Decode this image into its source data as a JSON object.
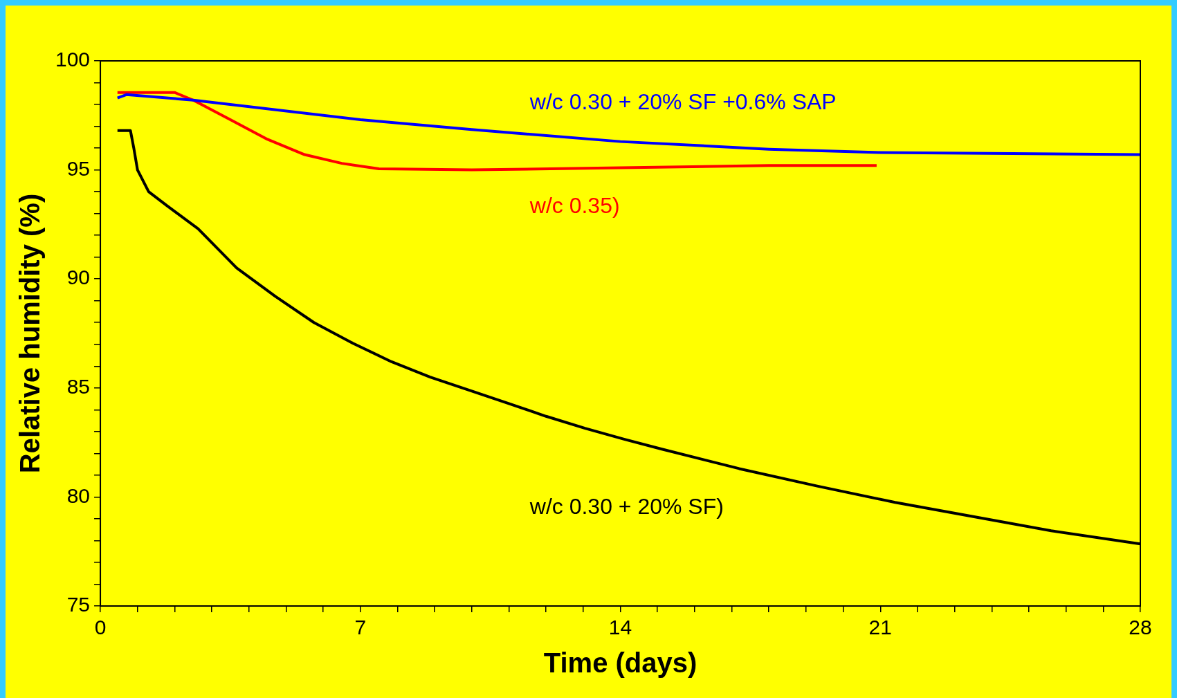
{
  "chart_data": {
    "type": "line",
    "xlabel": "Time (days)",
    "ylabel": "Relative humidity (%)",
    "xlim": [
      0,
      28
    ],
    "ylim": [
      75,
      100
    ],
    "xticks": [
      0,
      {
        "value": 1,
        "label": null
      },
      {
        "value": 2,
        "label": null
      },
      {
        "value": 3,
        "label": null
      },
      {
        "value": 4,
        "label": null
      },
      {
        "value": 5,
        "label": null
      },
      {
        "value": 6,
        "label": null
      },
      7,
      {
        "value": 8,
        "label": null
      },
      {
        "value": 9,
        "label": null
      },
      {
        "value": 10,
        "label": null
      },
      {
        "value": 11,
        "label": null
      },
      {
        "value": 12,
        "label": null
      },
      {
        "value": 13,
        "label": null
      },
      14,
      {
        "value": 15,
        "label": null
      },
      {
        "value": 16,
        "label": null
      },
      {
        "value": 17,
        "label": null
      },
      {
        "value": 18,
        "label": null
      },
      {
        "value": 19,
        "label": null
      },
      {
        "value": 20,
        "label": null
      },
      21,
      {
        "value": 22,
        "label": null
      },
      {
        "value": 23,
        "label": null
      },
      {
        "value": 24,
        "label": null
      },
      {
        "value": 25,
        "label": null
      },
      {
        "value": 26,
        "label": null
      },
      {
        "value": 27,
        "label": null
      },
      28
    ],
    "yticks": [
      75,
      {
        "value": 76,
        "label": null
      },
      {
        "value": 77,
        "label": null
      },
      {
        "value": 78,
        "label": null
      },
      {
        "value": 79,
        "label": null
      },
      80,
      {
        "value": 81,
        "label": null
      },
      {
        "value": 82,
        "label": null
      },
      {
        "value": 83,
        "label": null
      },
      {
        "value": 84,
        "label": null
      },
      85,
      {
        "value": 86,
        "label": null
      },
      {
        "value": 87,
        "label": null
      },
      {
        "value": 88,
        "label": null
      },
      {
        "value": 89,
        "label": null
      },
      90,
      {
        "value": 91,
        "label": null
      },
      {
        "value": 92,
        "label": null
      },
      {
        "value": 93,
        "label": null
      },
      {
        "value": 94,
        "label": null
      },
      95,
      {
        "value": 96,
        "label": null
      },
      {
        "value": 97,
        "label": null
      },
      {
        "value": 98,
        "label": null
      },
      {
        "value": 99,
        "label": null
      },
      100
    ],
    "grid": false,
    "legend": false,
    "marker": "none",
    "line_style": "solid",
    "series": [
      {
        "name": "w/c 0.30 + 20% SF +0.6% SAP",
        "color": "#0000ff",
        "x": [
          0.46,
          0.7,
          2.5,
          7,
          10,
          14,
          18,
          21,
          28
        ],
        "values": [
          98.3,
          98.45,
          98.2,
          97.3,
          96.85,
          96.3,
          95.95,
          95.8,
          95.7
        ]
      },
      {
        "name": "w/c 0.35)",
        "color": "#ff0000",
        "x": [
          0.46,
          2.0,
          2.5,
          3.5,
          4.5,
          5.5,
          6.5,
          7.5,
          10,
          14,
          18,
          20.9
        ],
        "values": [
          98.55,
          98.55,
          98.2,
          97.3,
          96.4,
          95.7,
          95.3,
          95.05,
          95.0,
          95.1,
          95.2,
          95.2
        ]
      },
      {
        "name": "w/c 0.30 + 20% SF)",
        "color": "#000000",
        "x": [
          0.46,
          0.81,
          0.9,
          1.0,
          1.3,
          1.8,
          2.63,
          3.67,
          4.71,
          5.75,
          6.8,
          7.84,
          8.88,
          9.92,
          10.97,
          12.0,
          13.05,
          14.1,
          15.1,
          17.2,
          19.3,
          21.4,
          23.5,
          25.6,
          28
        ],
        "values": [
          96.8,
          96.8,
          96.0,
          95.0,
          94.0,
          93.35,
          92.3,
          90.5,
          89.2,
          88.0,
          87.05,
          86.2,
          85.5,
          84.9,
          84.3,
          83.7,
          83.15,
          82.65,
          82.2,
          81.3,
          80.5,
          79.75,
          79.1,
          78.45,
          77.85
        ]
      }
    ]
  }
}
